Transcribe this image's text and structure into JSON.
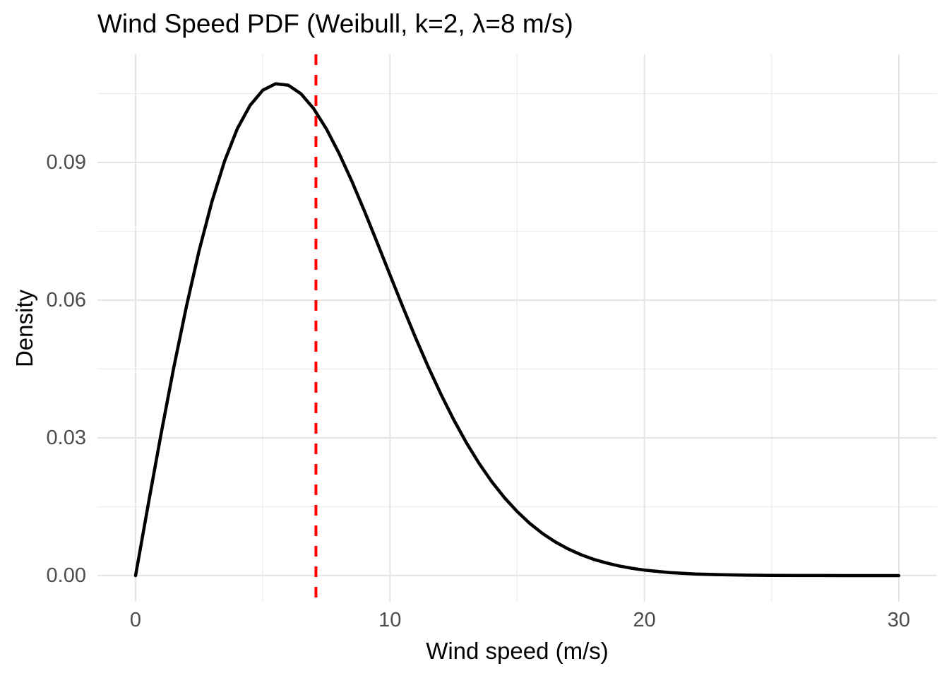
{
  "title": "Wind Speed PDF (Weibull, k=2, λ=8 m/s)",
  "colors": {
    "background": "#FFFFFF",
    "curve": "#000000",
    "mean_line": "#FF0000",
    "grid_major": "#E4E4E4",
    "grid_minor": "#EDEDED",
    "tick_text": "#4D4D4D",
    "title_text": "#000000"
  },
  "chart_data": {
    "type": "line",
    "title": "Wind Speed PDF (Weibull, k=2, λ=8 m/s)",
    "xlabel": "Wind speed (m/s)",
    "ylabel": "Density",
    "xlim": [
      -1.5,
      31.5
    ],
    "ylim": [
      -0.0056923,
      0.1135385
    ],
    "grid": true,
    "legend": "none",
    "x_ticks": {
      "values": [
        0,
        10,
        20,
        30
      ],
      "labels": [
        "0",
        "10",
        "20",
        "30"
      ]
    },
    "y_ticks": {
      "values": [
        0,
        0.03,
        0.06,
        0.09
      ],
      "labels": [
        "0.00",
        "0.03",
        "0.06",
        "0.09"
      ]
    },
    "x_minor": [
      5,
      15,
      25
    ],
    "y_minor": [
      0.015,
      0.045,
      0.075,
      0.105
    ],
    "series": [
      {
        "name": "Weibull PDF k=2, λ=8",
        "x": [
          0,
          0.5,
          1,
          1.5,
          2,
          2.5,
          3,
          3.5,
          4,
          4.5,
          5,
          5.5,
          6,
          6.5,
          7,
          7.5,
          8,
          8.5,
          9,
          9.5,
          10,
          10.5,
          11,
          11.5,
          12,
          12.5,
          13,
          13.5,
          14,
          14.5,
          15,
          15.5,
          16,
          16.5,
          17,
          17.5,
          18,
          18.5,
          19,
          19.5,
          20,
          21,
          22,
          23,
          24,
          25,
          26,
          27,
          28,
          29,
          30
        ],
        "y": [
          0,
          0.015564,
          0.030766,
          0.045256,
          0.058713,
          0.070855,
          0.081447,
          0.09033,
          0.09735,
          0.102423,
          0.105724,
          0.107137,
          0.106834,
          0.104968,
          0.101728,
          0.097317,
          0.09197,
          0.085904,
          0.079331,
          0.072476,
          0.065504,
          0.058595,
          0.051902,
          0.045518,
          0.039525,
          0.033997,
          0.028972,
          0.024461,
          0.020462,
          0.016962,
          0.013935,
          0.011344,
          0.009158,
          0.007328,
          0.005811,
          0.004565,
          0.003561,
          0.002751,
          0.002109,
          0.001603,
          0.001207,
          0.000668,
          0.000357,
          0.000185,
          9.26e-05,
          4.48e-05,
          2.1e-05,
          9.5e-06,
          4.2e-06,
          1.8e-06,
          7e-07
        ]
      }
    ],
    "vline": {
      "x": 7.09,
      "style": "dashed",
      "color": "#FF0000"
    }
  }
}
